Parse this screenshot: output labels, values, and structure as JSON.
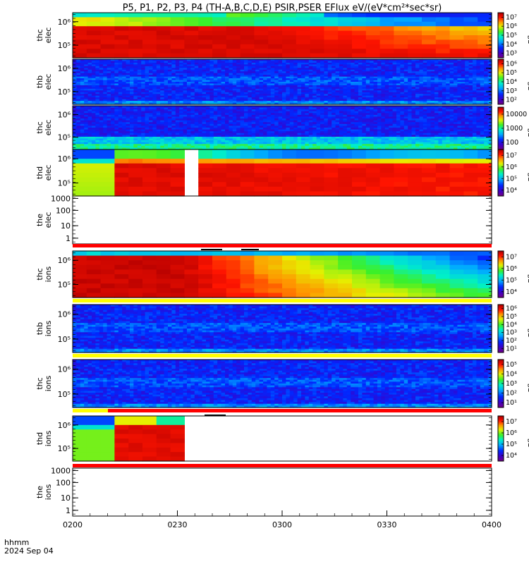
{
  "title": "P5, P1, P2, P3, P4 (TH-A,B,C,D,E) PSIR,PSER EFlux eV/(eV*cm²*sec*sr)",
  "footer": {
    "line1": "hhmm",
    "line2": "2024 Sep 04"
  },
  "chart_data": {
    "type": "heatmap",
    "x_ticks": [
      "0200",
      "0230",
      "0300",
      "0330",
      "0400"
    ],
    "x_range": [
      "02:00",
      "04:00"
    ],
    "colorbar_label": "Eflux",
    "panels": [
      {
        "label": [
          "thc",
          "elec"
        ],
        "y_ticks": [
          "10⁶",
          "10⁵"
        ],
        "cbar_ticks": [
          "10⁷",
          "10⁶",
          "10⁵",
          "10⁴",
          "10³"
        ],
        "description": "hot spectrum, warming at low energies through the interval"
      },
      {
        "label": [
          "thb",
          "elec"
        ],
        "y_ticks": [
          "10⁶",
          "10⁵"
        ],
        "cbar_ticks": [
          "10⁶",
          "10⁵",
          "10⁴",
          "10³",
          "10²"
        ],
        "description": "mostly dark blue and purple"
      },
      {
        "label": [
          "thc",
          "elec"
        ],
        "y_ticks": [
          "10⁶",
          "10⁵"
        ],
        "cbar_ticks": [
          "10000",
          "1000",
          "100"
        ],
        "description": "purple/blue with cyan at the low energies"
      },
      {
        "label": [
          "thd",
          "elec"
        ],
        "y_ticks": [
          "10⁶",
          "10⁵"
        ],
        "cbar_ticks": [
          "10⁷",
          "10⁶",
          "10⁵",
          "10⁴"
        ],
        "description": "hot spectrum with data gap near 02:28-02:32"
      },
      {
        "label": [
          "the",
          "elec"
        ],
        "y_ticks": [
          "1000",
          "100",
          "10",
          "1"
        ],
        "cbar_ticks": [],
        "description": "empty"
      },
      {
        "label": [
          "thc",
          "ions"
        ],
        "y_ticks": [
          "10⁶",
          "10⁵"
        ],
        "cbar_ticks": [
          "10⁷",
          "10⁶",
          "10⁵",
          "10⁴"
        ],
        "description": "red decaying to blue/green after 03:00"
      },
      {
        "label": [
          "thb",
          "ions"
        ],
        "y_ticks": [
          "10⁶",
          "10⁵"
        ],
        "cbar_ticks": [
          "10⁶",
          "10⁵",
          "10⁴",
          "10³",
          "10²",
          "10¹"
        ],
        "description": "dark blue/purple"
      },
      {
        "label": [
          "thc",
          "ions"
        ],
        "y_ticks": [
          "10⁶",
          "10⁵"
        ],
        "cbar_ticks": [
          "10⁵",
          "10⁴",
          "10³",
          "10²",
          "10¹"
        ],
        "description": "dark blue/purple"
      },
      {
        "label": [
          "thd",
          "ions"
        ],
        "y_ticks": [
          "10⁶",
          "10⁵"
        ],
        "cbar_ticks": [
          "10⁷",
          "10⁶",
          "10⁵",
          "10⁴"
        ],
        "description": "data only 02:00-02:30"
      },
      {
        "label": [
          "the",
          "ions"
        ],
        "y_ticks": [
          "1000",
          "100",
          "10",
          "1"
        ],
        "cbar_ticks": [],
        "description": "empty"
      }
    ]
  }
}
